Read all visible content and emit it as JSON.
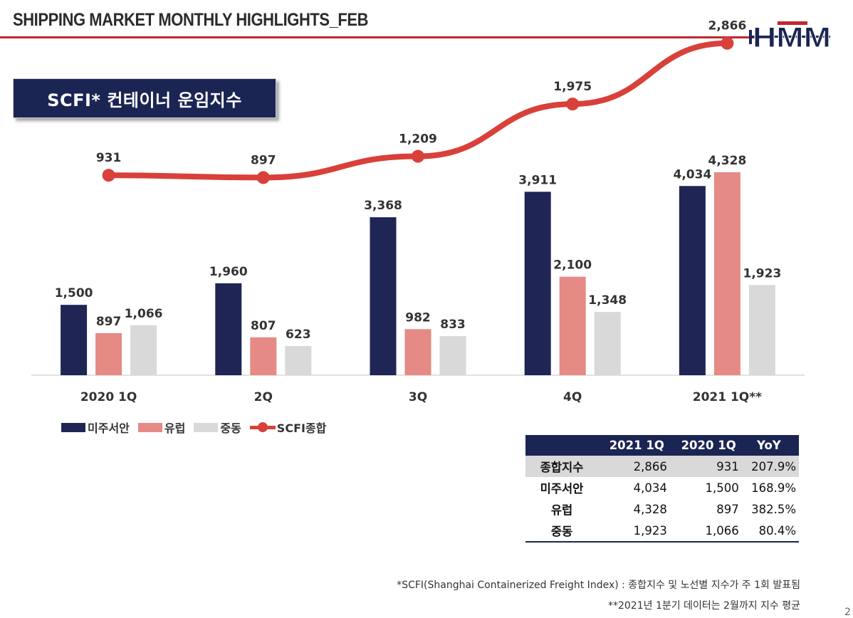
{
  "header": {
    "title": "SHIPPING MARKET MONTHLY HIGHLIGHTS_FEB",
    "logo_text": "HMM",
    "accent_color": "#c2272d",
    "navy_color": "#1b2554"
  },
  "section": {
    "title": "SCFI* 컨테이너 운임지수"
  },
  "chart_data": {
    "type": "bar",
    "categories": [
      "2020 1Q",
      "2Q",
      "3Q",
      "4Q",
      "2021 1Q**"
    ],
    "series": [
      {
        "name": "미주서안",
        "kind": "bar",
        "color": "#1f2555",
        "values": [
          1500,
          1960,
          3368,
          3911,
          4034
        ],
        "labels": [
          "1,500",
          "1,960",
          "3,368",
          "3,911",
          "4,034"
        ]
      },
      {
        "name": "유럽",
        "kind": "bar",
        "color": "#e58a84",
        "values": [
          897,
          807,
          982,
          2100,
          4328
        ],
        "labels": [
          "897",
          "807",
          "982",
          "2,100",
          "4,328"
        ]
      },
      {
        "name": "중동",
        "kind": "bar",
        "color": "#d9d9d9",
        "values": [
          1066,
          623,
          833,
          1348,
          1923
        ],
        "labels": [
          "1,066",
          "623",
          "833",
          "1,348",
          "1,923"
        ]
      },
      {
        "name": "SCFI종합",
        "kind": "line",
        "color": "#d9403a",
        "values": [
          931,
          897,
          1209,
          1975,
          2866
        ],
        "labels": [
          "931",
          "897",
          "1,209",
          "1,975",
          "2,866"
        ]
      }
    ],
    "bar_axis": {
      "min": 0,
      "max": 8000
    },
    "line_axis": {
      "min": -2000,
      "max": 3500
    },
    "legend_position": "bottom-left",
    "grid": false
  },
  "legend": [
    {
      "label": "미주서안",
      "color": "#1f2555",
      "type": "bar"
    },
    {
      "label": "유럽",
      "color": "#e58a84",
      "type": "bar"
    },
    {
      "label": "중동",
      "color": "#d9d9d9",
      "type": "bar"
    },
    {
      "label": "SCFI종합",
      "color": "#d9403a",
      "type": "line"
    }
  ],
  "summary_table": {
    "headers": [
      "",
      "2021 1Q",
      "2020 1Q",
      "YoY"
    ],
    "rows": [
      {
        "label": "종합지수",
        "v2021": "2,866",
        "v2020": "931",
        "yoy": "207.9%"
      },
      {
        "label": "미주서안",
        "v2021": "4,034",
        "v2020": "1,500",
        "yoy": "168.9%"
      },
      {
        "label": "유럽",
        "v2021": "4,328",
        "v2020": "897",
        "yoy": "382.5%"
      },
      {
        "label": "중동",
        "v2021": "1,923",
        "v2020": "1,066",
        "yoy": "80.4%"
      }
    ]
  },
  "footnotes": [
    "*SCFI(Shanghai Containerized Freight Index) : 종합지수 및 노선별 지수가 주 1회 발표됨",
    "**2021년 1분기 데이터는 2월까지 지수 평균"
  ],
  "page_number": "2"
}
